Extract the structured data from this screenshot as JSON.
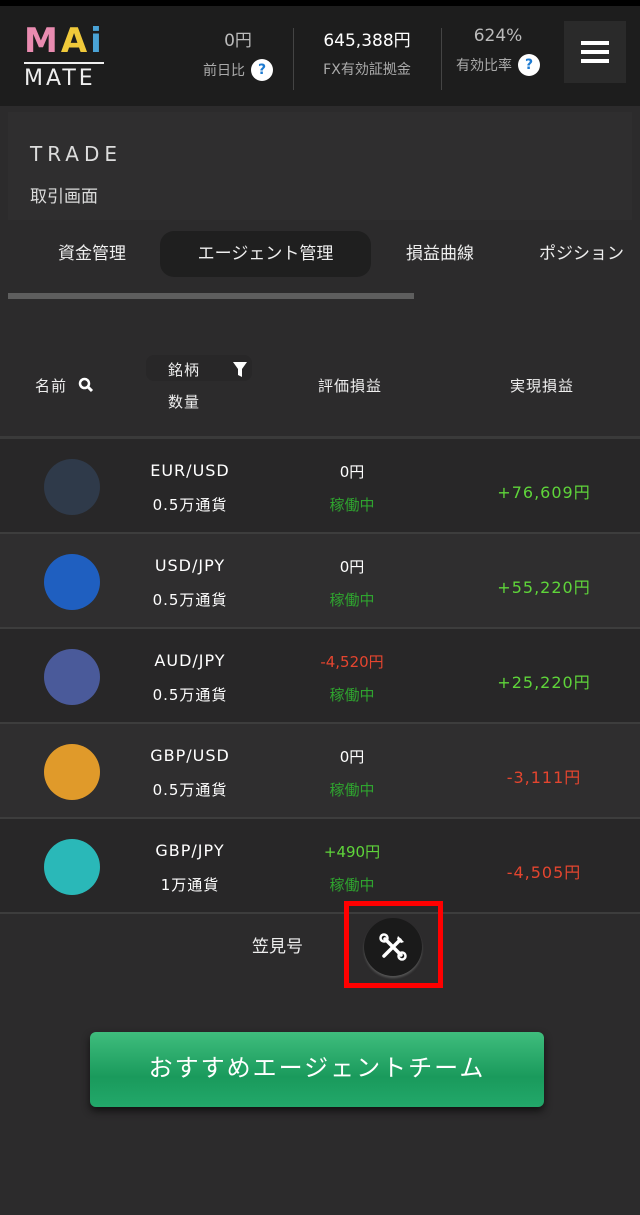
{
  "header": {
    "logo": {
      "mai_m": "M",
      "mai_a": "A",
      "mai_i": "i",
      "mate": "MATE"
    },
    "stats": [
      {
        "value": "0円",
        "label": "前日比",
        "help": "?"
      },
      {
        "value": "645,388円",
        "label": "FX有効証拠金"
      },
      {
        "value": "624%",
        "label": "有効比率",
        "help": "?"
      }
    ]
  },
  "page": {
    "title": "TRADE",
    "subtitle": "取引画面"
  },
  "tabs": [
    {
      "label": "資金管理"
    },
    {
      "label": "エージェント管理",
      "active": true
    },
    {
      "label": "損益曲線"
    },
    {
      "label": "ポジション"
    }
  ],
  "table": {
    "headers": {
      "name": "名前",
      "symbol": "銘柄",
      "quantity": "数量",
      "unrealized": "評価損益",
      "realized": "実現損益"
    },
    "rows": [
      {
        "avatar": "penguin",
        "color": "#2f3a4a",
        "pair": "EUR/USD",
        "qty": "0.5万通貨",
        "eval": "0円",
        "eval_sign": "zero",
        "status": "稼働中",
        "real": "+76,609円",
        "real_sign": "pos"
      },
      {
        "avatar": "octopus",
        "color": "#1f5fc0",
        "pair": "USD/JPY",
        "qty": "0.5万通貨",
        "eval": "0円",
        "eval_sign": "zero",
        "status": "稼働中",
        "real": "+55,220円",
        "real_sign": "pos"
      },
      {
        "avatar": "wolf",
        "color": "#4a5a9a",
        "pair": "AUD/JPY",
        "qty": "0.5万通貨",
        "eval": "-4,520円",
        "eval_sign": "neg",
        "status": "稼働中",
        "real": "+25,220円",
        "real_sign": "pos"
      },
      {
        "avatar": "mushroom",
        "color": "#e09a2a",
        "pair": "GBP/USD",
        "qty": "0.5万通貨",
        "eval": "0円",
        "eval_sign": "zero",
        "status": "稼働中",
        "real": "-3,111円",
        "real_sign": "neg"
      },
      {
        "avatar": "dragon",
        "color": "#2ab8b8",
        "pair": "GBP/JPY",
        "qty": "1万通貨",
        "eval": "+490円",
        "eval_sign": "pos",
        "status": "稼働中",
        "real": "-4,505円",
        "real_sign": "neg"
      }
    ]
  },
  "footer": {
    "name": "笠見号",
    "tool_icon": "wrench-screwdriver-icon"
  },
  "recommend_button": "おすすめエージェントチーム",
  "colors": {
    "positive": "#5fd53a",
    "negative": "#e4452f",
    "running": "#2fa32f",
    "highlight": "#ff0000"
  }
}
